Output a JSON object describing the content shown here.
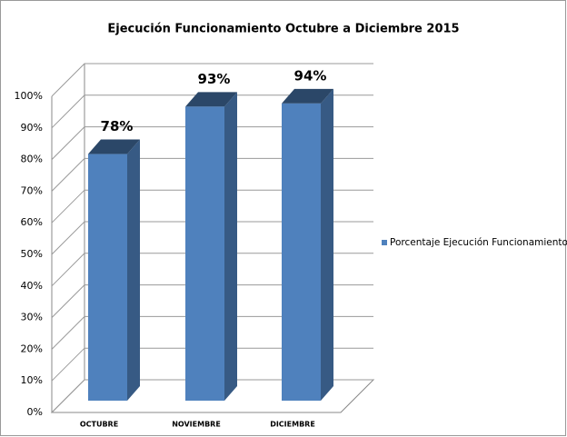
{
  "chart_data": {
    "type": "bar3d",
    "title": "Ejecución Funcionamiento Octubre a Diciembre 2015",
    "categories": [
      "OCTUBRE",
      "NOVIEMBRE",
      "DICIEMBRE"
    ],
    "series": [
      {
        "name": "Porcentaje Ejecución Funcionamiento",
        "color": "#4f81bd",
        "values": [
          78,
          93,
          94
        ],
        "value_labels": [
          "78%",
          "93%",
          "94%"
        ]
      }
    ],
    "ylim": [
      0,
      100
    ],
    "yticks": [
      {
        "value": 0,
        "label": "0%"
      },
      {
        "value": 10,
        "label": "10%"
      },
      {
        "value": 20,
        "label": "20%"
      },
      {
        "value": 30,
        "label": "30%"
      },
      {
        "value": 40,
        "label": "40%"
      },
      {
        "value": 50,
        "label": "50%"
      },
      {
        "value": 60,
        "label": "60%"
      },
      {
        "value": 70,
        "label": "70%"
      },
      {
        "value": 80,
        "label": "80%"
      },
      {
        "value": 90,
        "label": "90%"
      },
      {
        "value": 100,
        "label": "100%"
      }
    ],
    "grid": true,
    "legend": "right"
  }
}
